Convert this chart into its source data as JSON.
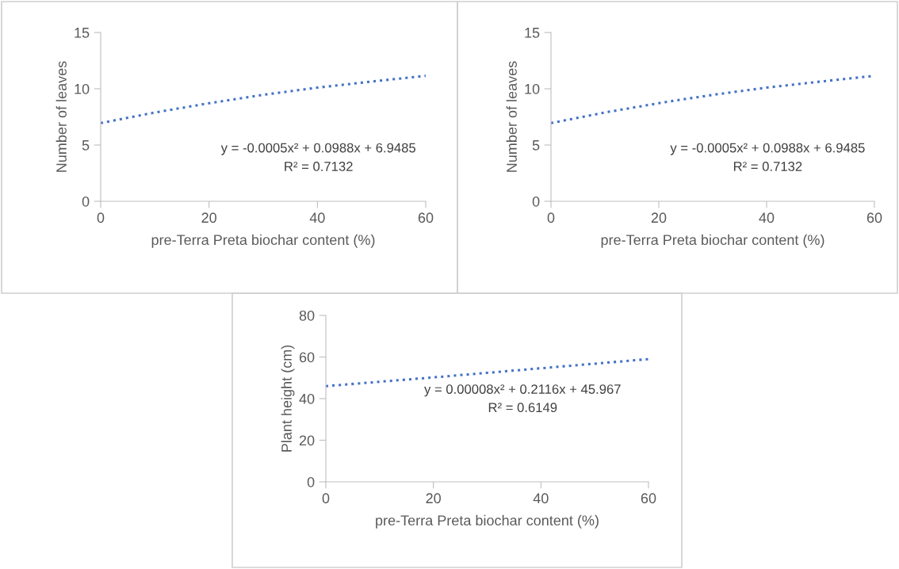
{
  "chart_data": [
    {
      "type": "line",
      "xlabel": "pre-Terra Preta biochar content (%)",
      "ylabel": "Number of leaves",
      "x": [
        0,
        10,
        20,
        30,
        40,
        50,
        60
      ],
      "series": [
        {
          "color": "#4472c4",
          "values": [
            6.95,
            7.89,
            8.72,
            9.46,
            10.1,
            10.64,
            11.15
          ]
        }
      ],
      "xlim": [
        0,
        60
      ],
      "xticks": [
        0,
        20,
        40,
        60
      ],
      "ylim": [
        0,
        15
      ],
      "yticks": [
        0,
        5,
        10,
        15
      ],
      "grid": false,
      "legend": false,
      "marker": "none",
      "line_style": "dotted",
      "annotations": [
        "y = -0.0005x² + 0.0988x + 6.9485",
        "R² = 0.7132"
      ]
    },
    {
      "type": "line",
      "xlabel": "pre-Terra Preta biochar content (%)",
      "ylabel": "Number of leaves",
      "x": [
        0,
        10,
        20,
        30,
        40,
        50,
        60
      ],
      "series": [
        {
          "color": "#4472c4",
          "values": [
            6.95,
            7.89,
            8.72,
            9.46,
            10.1,
            10.64,
            11.15
          ]
        }
      ],
      "xlim": [
        0,
        60
      ],
      "xticks": [
        0,
        20,
        40,
        60
      ],
      "ylim": [
        0,
        15
      ],
      "yticks": [
        0,
        5,
        10,
        15
      ],
      "grid": false,
      "legend": false,
      "marker": "none",
      "line_style": "dotted",
      "annotations": [
        "y = -0.0005x² + 0.0988x + 6.9485",
        "R² = 0.7132"
      ]
    },
    {
      "type": "line",
      "xlabel": "pre-Terra Preta biochar content (%)",
      "ylabel": "Plant height (cm)",
      "x": [
        0,
        10,
        20,
        30,
        40,
        50,
        60
      ],
      "series": [
        {
          "color": "#4472c4",
          "values": [
            46.0,
            48.1,
            50.2,
            52.4,
            54.6,
            56.8,
            59.0
          ]
        }
      ],
      "xlim": [
        0,
        60
      ],
      "xticks": [
        0,
        20,
        40,
        60
      ],
      "ylim": [
        0,
        80
      ],
      "yticks": [
        0,
        20,
        40,
        60,
        80
      ],
      "grid": false,
      "legend": false,
      "marker": "none",
      "line_style": "dotted",
      "annotations": [
        "y = 0.00008x² + 0.2116x + 45.967",
        "R² = 0.6149"
      ]
    }
  ]
}
